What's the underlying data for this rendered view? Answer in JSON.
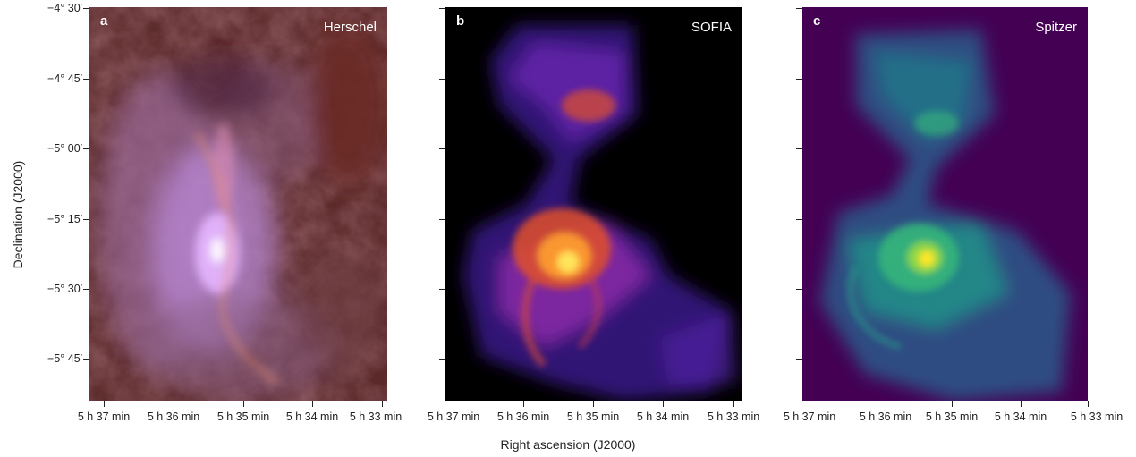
{
  "panels": [
    {
      "letter": "a",
      "name": "Herschel"
    },
    {
      "letter": "b",
      "name": "SOFIA"
    },
    {
      "letter": "c",
      "name": "Spitzer"
    }
  ],
  "y_axis": {
    "label": "Declination (J2000)",
    "ticks": [
      "−4° 30′",
      "−4° 45′",
      "−5° 00′",
      "−5° 15′",
      "−5° 30′",
      "−5° 45′"
    ]
  },
  "x_axis": {
    "label": "Right ascension (J2000)",
    "ticks": [
      "5 h 37 min",
      "5 h 36 min",
      "5 h 35 min",
      "5 h 34 min",
      "5 h 33 min"
    ]
  },
  "colors": {
    "herschel_bg": "#5b2a2a",
    "herschel_glow": "#c890f0",
    "sofia_bg": "#000000",
    "sofia_core": "#ffe45a",
    "spitzer_bg": "#440154",
    "spitzer_core": "#fde725"
  }
}
